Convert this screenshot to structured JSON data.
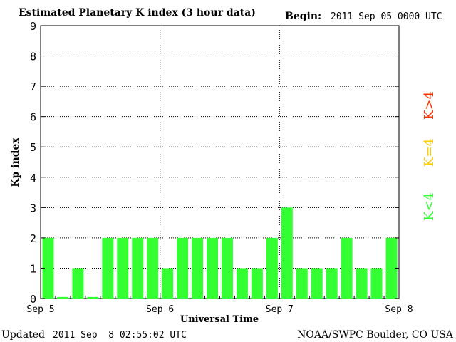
{
  "header": {
    "title": "Estimated Planetary K index (3 hour data)",
    "begin_label": "Begin:",
    "begin_value": "2011 Sep 05 0000 UTC"
  },
  "footer": {
    "updated_label": "Updated",
    "updated_value": "2011 Sep  8 02:55:02 UTC",
    "source": "NOAA/SWPC Boulder, CO USA"
  },
  "legend": {
    "high": "K>4",
    "mid": "K=4",
    "low": "K<4"
  },
  "colors": {
    "low": "#33ff33",
    "mid": "#ffcc00",
    "high": "#ff3300"
  },
  "chart_data": {
    "type": "bar",
    "ylabel": "Kp index",
    "xlabel": "Universal Time",
    "ylim": [
      0,
      9
    ],
    "yticks": [
      "0",
      "1",
      "2",
      "3",
      "4",
      "5",
      "6",
      "7",
      "8",
      "9"
    ],
    "xticks": [
      "Sep 5",
      "Sep 6",
      "Sep 7",
      "Sep 8"
    ],
    "grid": true,
    "values": [
      2,
      0.05,
      1,
      0.05,
      2,
      2,
      2,
      2,
      1,
      2,
      2,
      2,
      2,
      1,
      1,
      2,
      3,
      1,
      1,
      1,
      2,
      1,
      1,
      2
    ]
  }
}
